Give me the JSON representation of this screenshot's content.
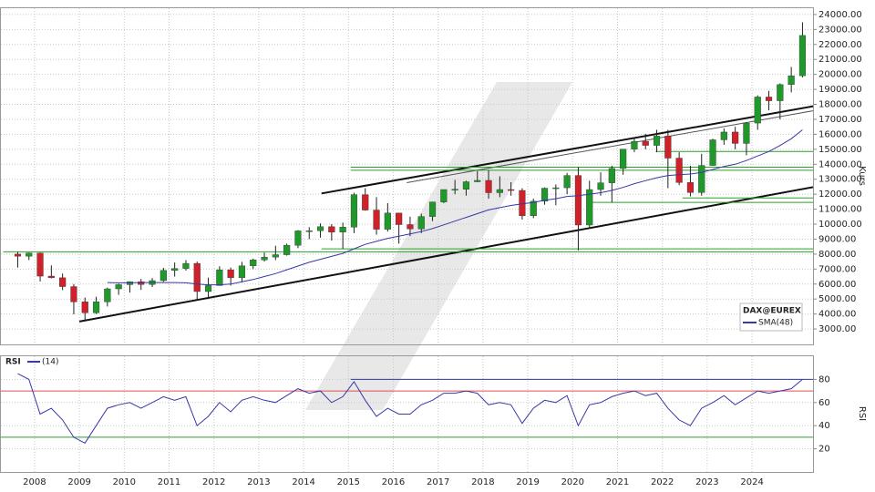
{
  "chart_data": [
    {
      "type": "candlestick",
      "name": "DAX@EUREX",
      "y_label": "Kurs",
      "up_color": "#1f9a2a",
      "down_color": "#d0202a",
      "grid": true,
      "xlim": [
        2007.25,
        2025.36
      ],
      "ylim": [
        1970,
        24420
      ],
      "yticks": [
        {
          "value": 3000,
          "label": "3000.00"
        },
        {
          "value": 4000,
          "label": "4000.00"
        },
        {
          "value": 5000,
          "label": "5000.00"
        },
        {
          "value": 6000,
          "label": "6000.00"
        },
        {
          "value": 7000,
          "label": "7000.00"
        },
        {
          "value": 8000,
          "label": "8000.00"
        },
        {
          "value": 9000,
          "label": "9000.00"
        },
        {
          "value": 10000,
          "label": "10000.00"
        },
        {
          "value": 11000,
          "label": "11000.00"
        },
        {
          "value": 12000,
          "label": "12000.00"
        },
        {
          "value": 13000,
          "label": "13000.00"
        },
        {
          "value": 14000,
          "label": "14000.00"
        },
        {
          "value": 15000,
          "label": "15000.00"
        },
        {
          "value": 16000,
          "label": "16000.00"
        },
        {
          "value": 17000,
          "label": "17000.00"
        },
        {
          "value": 18000,
          "label": "18000.00"
        },
        {
          "value": 19000,
          "label": "19000.00"
        },
        {
          "value": 20000,
          "label": "20000.00"
        },
        {
          "value": 21000,
          "label": "21000.00"
        },
        {
          "value": 22000,
          "label": "22000.00"
        },
        {
          "value": 23000,
          "label": "23000.00"
        },
        {
          "value": 24000,
          "label": "24000.00"
        }
      ],
      "x": [
        2007.625,
        2007.875,
        2008.125,
        2008.375,
        2008.625,
        2008.875,
        2009.125,
        2009.375,
        2009.625,
        2009.875,
        2010.125,
        2010.375,
        2010.625,
        2010.875,
        2011.125,
        2011.375,
        2011.625,
        2011.875,
        2012.125,
        2012.375,
        2012.625,
        2012.875,
        2013.125,
        2013.375,
        2013.625,
        2013.875,
        2014.125,
        2014.375,
        2014.625,
        2014.875,
        2015.125,
        2015.375,
        2015.625,
        2015.875,
        2016.125,
        2016.375,
        2016.625,
        2016.875,
        2017.125,
        2017.375,
        2017.625,
        2017.875,
        2018.125,
        2018.375,
        2018.625,
        2018.875,
        2019.125,
        2019.375,
        2019.625,
        2019.875,
        2020.125,
        2020.375,
        2020.625,
        2020.875,
        2021.125,
        2021.375,
        2021.625,
        2021.875,
        2022.125,
        2022.375,
        2022.625,
        2022.875,
        2023.125,
        2023.375,
        2023.625,
        2023.875,
        2024.125,
        2024.375,
        2024.625,
        2024.875,
        2025.125
      ],
      "open": [
        8000,
        7860,
        8070,
        6530,
        6420,
        5830,
        4810,
        4080,
        4810,
        5680,
        5960,
        6150,
        5970,
        6230,
        6910,
        7040,
        7380,
        5500,
        5900,
        6950,
        6420,
        7220,
        7610,
        7800,
        7960,
        8590,
        9550,
        9560,
        9830,
        9470,
        9800,
        11970,
        10940,
        9660,
        10740,
        9970,
        9680,
        10510,
        11480,
        12310,
        12330,
        12830,
        12920,
        12100,
        12310,
        12250,
        10560,
        11530,
        12400,
        12430,
        13250,
        9940,
        12310,
        12760,
        13720,
        15010,
        15530,
        15260,
        15880,
        14410,
        12780,
        12110,
        13920,
        15630,
        16150,
        15390,
        16750,
        18490,
        18240,
        19320,
        19910
      ],
      "high": [
        8150,
        8100,
        8100,
        7250,
        6700,
        6000,
        5100,
        5150,
        5760,
        6030,
        6180,
        6340,
        6400,
        7080,
        7440,
        7600,
        7500,
        6430,
        7190,
        7100,
        7480,
        7700,
        8100,
        8560,
        8700,
        9600,
        9800,
        10050,
        10000,
        10100,
        12100,
        12400,
        11800,
        11400,
        10750,
        10500,
        10700,
        11500,
        12300,
        12950,
        12900,
        13550,
        13600,
        13200,
        12800,
        12400,
        11700,
        12450,
        12650,
        13420,
        13800,
        12900,
        13460,
        13900,
        15000,
        15800,
        16030,
        16300,
        16300,
        14800,
        13900,
        14700,
        15700,
        16400,
        16500,
        16800,
        18600,
        18900,
        19400,
        20500,
        23480
      ],
      "low": [
        7100,
        7600,
        6170,
        6380,
        5600,
        3980,
        3590,
        4000,
        4500,
        5280,
        5430,
        5610,
        5800,
        6150,
        6500,
        6900,
        4970,
        5000,
        5900,
        5900,
        6100,
        7000,
        7500,
        7600,
        7900,
        8400,
        9000,
        9100,
        8900,
        8350,
        9400,
        10900,
        9300,
        9500,
        8700,
        9200,
        9400,
        10200,
        11400,
        12000,
        11900,
        12800,
        11700,
        11800,
        11900,
        10300,
        10400,
        11300,
        11260,
        12000,
        8250,
        9700,
        11900,
        11450,
        13300,
        14800,
        15000,
        14800,
        12400,
        12600,
        11860,
        11900,
        13900,
        15300,
        15000,
        14600,
        16300,
        17600,
        17000,
        18800,
        19800
      ],
      "close": [
        7860,
        8070,
        6530,
        6420,
        5830,
        4810,
        4080,
        4810,
        5680,
        5960,
        6150,
        5970,
        6230,
        6910,
        7040,
        7380,
        5500,
        5900,
        6950,
        6420,
        7220,
        7610,
        7800,
        7960,
        8590,
        9550,
        9560,
        9830,
        9470,
        9800,
        11970,
        10940,
        9660,
        10740,
        9970,
        9680,
        10510,
        11480,
        12310,
        12330,
        12830,
        12920,
        12100,
        12310,
        12250,
        10560,
        11530,
        12400,
        12430,
        13250,
        9940,
        12310,
        12760,
        13720,
        15010,
        15530,
        15260,
        15880,
        14410,
        12780,
        12110,
        13920,
        15630,
        16150,
        15390,
        16750,
        18490,
        18240,
        19320,
        19910,
        22600
      ],
      "series": [
        {
          "name": "SMA(48)",
          "color": "#3838a8",
          "values": [
            null,
            null,
            null,
            null,
            null,
            null,
            null,
            null,
            6100,
            6080,
            6080,
            6100,
            6100,
            6100,
            6100,
            6080,
            6000,
            5950,
            5950,
            6000,
            6150,
            6300,
            6500,
            6700,
            6950,
            7200,
            7450,
            7650,
            7850,
            8050,
            8350,
            8650,
            8850,
            9050,
            9200,
            9350,
            9500,
            9700,
            9950,
            10200,
            10450,
            10700,
            10950,
            11100,
            11250,
            11350,
            11450,
            11600,
            11700,
            11850,
            11900,
            12000,
            12100,
            12250,
            12450,
            12700,
            12900,
            13100,
            13250,
            13300,
            13350,
            13450,
            13650,
            13850,
            14000,
            14250,
            14550,
            14850,
            15250,
            15700,
            16300
          ]
        }
      ],
      "lines": [
        {
          "x": [
            2009.0,
            2025.36
          ],
          "y": [
            3500,
            12470
          ],
          "color": "#111111"
        },
        {
          "x": [
            2014.4,
            2025.36
          ],
          "y": [
            12050,
            17870
          ],
          "color": "#111111"
        },
        {
          "x": [
            2016.3,
            2025.36
          ],
          "y": [
            12770,
            17570
          ],
          "color": "#555555"
        },
        {
          "x": [
            2007.3,
            2025.36
          ],
          "y": [
            8150,
            8150
          ],
          "color": "#2aa02a"
        },
        {
          "x": [
            2014.4,
            2025.36
          ],
          "y": [
            8350,
            8350
          ],
          "color": "#2aa02a"
        },
        {
          "x": [
            2015.05,
            2025.36
          ],
          "y": [
            13800,
            13800
          ],
          "color": "#2aa02a"
        },
        {
          "x": [
            2015.05,
            2025.36
          ],
          "y": [
            13600,
            13600
          ],
          "color": "#2aa02a"
        },
        {
          "x": [
            2020.3,
            2025.36
          ],
          "y": [
            11450,
            11450
          ],
          "color": "#2aa02a"
        },
        {
          "x": [
            2022.45,
            2025.36
          ],
          "y": [
            11750,
            11750
          ],
          "color": "#2aa02a"
        },
        {
          "x": [
            2021.85,
            2025.36
          ],
          "y": [
            14850,
            14850
          ],
          "color": "#2aa02a"
        }
      ]
    },
    {
      "type": "line",
      "title": "RSI",
      "y_label": "RSI",
      "grid": true,
      "xlim": [
        2007.25,
        2025.36
      ],
      "ylim": [
        0,
        100
      ],
      "xticks": [
        2008,
        2009,
        2010,
        2011,
        2012,
        2013,
        2014,
        2015,
        2016,
        2017,
        2018,
        2019,
        2020,
        2021,
        2022,
        2023,
        2024
      ],
      "yticks": [
        20,
        40,
        60,
        80
      ],
      "x": [
        2007.625,
        2007.875,
        2008.125,
        2008.375,
        2008.625,
        2008.875,
        2009.125,
        2009.375,
        2009.625,
        2009.875,
        2010.125,
        2010.375,
        2010.625,
        2010.875,
        2011.125,
        2011.375,
        2011.625,
        2011.875,
        2012.125,
        2012.375,
        2012.625,
        2012.875,
        2013.125,
        2013.375,
        2013.625,
        2013.875,
        2014.125,
        2014.375,
        2014.625,
        2014.875,
        2015.125,
        2015.375,
        2015.625,
        2015.875,
        2016.125,
        2016.375,
        2016.625,
        2016.875,
        2017.125,
        2017.375,
        2017.625,
        2017.875,
        2018.125,
        2018.375,
        2018.625,
        2018.875,
        2019.125,
        2019.375,
        2019.625,
        2019.875,
        2020.125,
        2020.375,
        2020.625,
        2020.875,
        2021.125,
        2021.375,
        2021.625,
        2021.875,
        2022.125,
        2022.375,
        2022.625,
        2022.875,
        2023.125,
        2023.375,
        2023.625,
        2023.875,
        2024.125,
        2024.375,
        2024.625,
        2024.875,
        2025.125
      ],
      "series": [
        {
          "name": "(14)",
          "color": "#3838a8",
          "values": [
            85,
            80,
            50,
            55,
            45,
            30,
            25,
            40,
            55,
            58,
            60,
            55,
            60,
            65,
            62,
            65,
            40,
            48,
            60,
            52,
            62,
            65,
            62,
            60,
            66,
            72,
            68,
            70,
            60,
            65,
            78,
            62,
            48,
            55,
            50,
            50,
            58,
            62,
            68,
            68,
            70,
            68,
            58,
            60,
            58,
            42,
            55,
            62,
            60,
            66,
            40,
            58,
            60,
            65,
            68,
            70,
            66,
            68,
            55,
            45,
            40,
            55,
            60,
            66,
            58,
            64,
            70,
            68,
            70,
            72,
            80
          ]
        }
      ],
      "lines": [
        {
          "x": [
            2007.25,
            2025.36
          ],
          "y": [
            70,
            70
          ],
          "color": "#e05050"
        },
        {
          "x": [
            2007.25,
            2025.36
          ],
          "y": [
            30,
            30
          ],
          "color": "#2aa02a"
        },
        {
          "x": [
            2015.05,
            2025.36
          ],
          "y": [
            80,
            80
          ],
          "color": "#2a3aa8"
        }
      ]
    }
  ]
}
